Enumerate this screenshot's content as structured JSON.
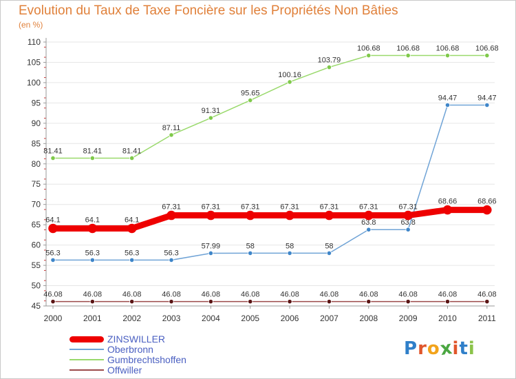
{
  "title": "Evolution du Taux de Taxe Foncière sur les Propriétés Non Bâties",
  "subtitle": "(en %)",
  "brand": {
    "text": "Proxiti",
    "letters": [
      "P",
      "r",
      "o",
      "x",
      "i",
      "t",
      "i"
    ],
    "colors": [
      "#2f7fc9",
      "#e0562c",
      "#f2a31b",
      "#4aa641",
      "#e0562c",
      "#2f7fc9",
      "#8bc34a"
    ]
  },
  "chart_data": {
    "type": "line",
    "categories": [
      "2000",
      "2001",
      "2002",
      "2003",
      "2004",
      "2005",
      "2006",
      "2007",
      "2008",
      "2009",
      "2010",
      "2011"
    ],
    "ylim": [
      45,
      110
    ],
    "yticks": [
      "45",
      "50",
      "55",
      "60",
      "65",
      "70",
      "75",
      "80",
      "85",
      "90",
      "95",
      "100",
      "105",
      "110"
    ],
    "grid": "horizontal",
    "legend_position": "bottom-left",
    "series": [
      {
        "name": "Gumbrechtshoffen",
        "color": "#99d96b",
        "marker": "#7fc94a",
        "width": 1.5,
        "values": [
          81.41,
          81.41,
          81.41,
          87.11,
          91.31,
          95.65,
          100.16,
          103.79,
          106.68,
          106.68,
          106.68,
          106.68
        ],
        "labels": [
          "81.41",
          "81.41",
          "81.41",
          "87.11",
          "91.31",
          "95.65",
          "100.16",
          "103.79",
          "106.68",
          "106.68",
          "106.68",
          "106.68"
        ]
      },
      {
        "name": "Oberbronn",
        "color": "#6fa3d6",
        "marker": "#3f86c9",
        "width": 1.5,
        "values": [
          56.3,
          56.3,
          56.3,
          56.3,
          57.99,
          58,
          58,
          58,
          63.8,
          63.8,
          94.47,
          94.47
        ],
        "labels": [
          "56.3",
          "56.3",
          "56.3",
          "56.3",
          "57.99",
          "58",
          "58",
          "58",
          "63.8",
          "63.8",
          "94.47",
          "94.47"
        ]
      },
      {
        "name": "Offwiller",
        "color": "#9b4a4a",
        "marker": "#5a1414",
        "width": 1.5,
        "values": [
          46.08,
          46.08,
          46.08,
          46.08,
          46.08,
          46.08,
          46.08,
          46.08,
          46.08,
          46.08,
          46.08,
          46.08
        ],
        "labels": [
          "46.08",
          "46.08",
          "46.08",
          "46.08",
          "46.08",
          "46.08",
          "46.08",
          "46.08",
          "46.08",
          "46.08",
          "46.08",
          "46.08"
        ]
      },
      {
        "name": "ZINSWILLER",
        "color": "#ee0000",
        "marker": "#ee0000",
        "width": 9,
        "values": [
          64.1,
          64.1,
          64.1,
          67.31,
          67.31,
          67.31,
          67.31,
          67.31,
          67.31,
          67.31,
          68.66,
          68.66
        ],
        "labels": [
          "64.1",
          "64.1",
          "64.1",
          "67.31",
          "67.31",
          "67.31",
          "67.31",
          "67.31",
          "67.31",
          "67.31",
          "68.66",
          "68.66"
        ]
      }
    ],
    "legend": [
      {
        "name": "ZINSWILLER",
        "color": "#ee0000",
        "width": 9
      },
      {
        "name": "Oberbronn",
        "color": "#6fa3d6",
        "width": 2
      },
      {
        "name": "Gumbrechtshoffen",
        "color": "#99d96b",
        "width": 2
      },
      {
        "name": "Offwiller",
        "color": "#9b4a4a",
        "width": 2
      }
    ]
  }
}
